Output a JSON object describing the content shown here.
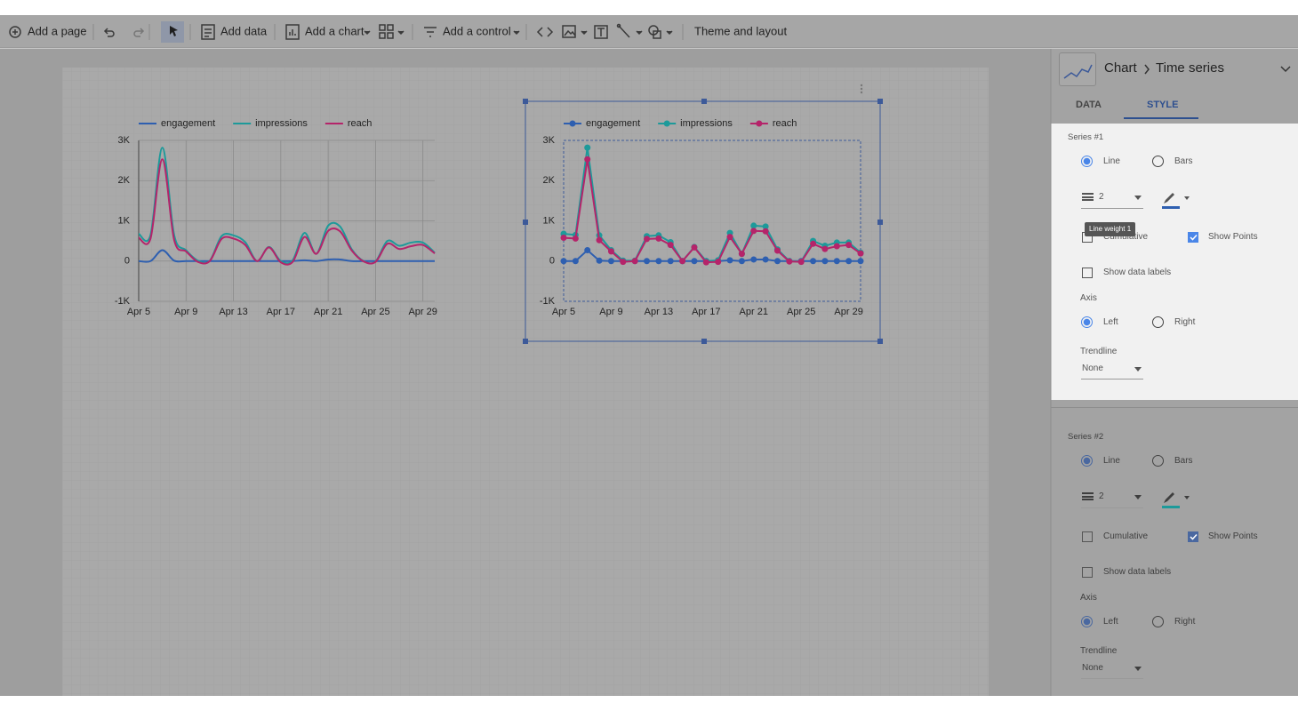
{
  "toolbar": {
    "items": [
      "Add a page",
      "Add data",
      "Add a chart",
      "Add a control",
      "Theme and layout"
    ]
  },
  "chart_data": [
    {
      "type": "line",
      "smooth": true,
      "show_points": false,
      "grid": true,
      "legend": "top",
      "categories": [
        "Apr 5",
        null,
        null,
        null,
        "Apr 9",
        null,
        null,
        null,
        "Apr 13",
        null,
        null,
        null,
        "Apr 17",
        null,
        null,
        null,
        "Apr 21",
        null,
        null,
        null,
        "Apr 25",
        null,
        null,
        null,
        "Apr 29",
        null
      ],
      "series": [
        {
          "name": "engagement",
          "color": "#2e5fb0",
          "values": [
            0,
            0,
            270,
            10,
            0,
            0,
            0,
            0,
            0,
            0,
            0,
            0,
            0,
            0,
            20,
            0,
            40,
            40,
            0,
            0,
            0,
            0,
            0,
            0,
            0,
            0
          ]
        },
        {
          "name": "impressions",
          "color": "#1d9a9a",
          "values": [
            680,
            650,
            2820,
            640,
            270,
            10,
            10,
            620,
            640,
            470,
            0,
            350,
            0,
            20,
            700,
            180,
            880,
            860,
            290,
            0,
            -10,
            500,
            380,
            460,
            460,
            210
          ]
        },
        {
          "name": "reach",
          "color": "#b5246a",
          "values": [
            580,
            560,
            2530,
            520,
            240,
            -20,
            0,
            550,
            560,
            400,
            0,
            340,
            -30,
            -20,
            600,
            180,
            750,
            740,
            260,
            -10,
            -20,
            430,
            300,
            370,
            400,
            190
          ]
        }
      ],
      "ylim": [
        -1000,
        3000
      ],
      "yticks": [
        {
          "value": -1000,
          "label": "-1K"
        },
        0,
        {
          "value": 1000,
          "label": "1K"
        },
        {
          "value": 2000,
          "label": "2K"
        },
        {
          "value": 3000,
          "label": "3K"
        }
      ]
    },
    {
      "type": "line",
      "smooth": false,
      "show_points": true,
      "grid": false,
      "legend": "top",
      "categories": [
        "Apr 5",
        null,
        null,
        null,
        "Apr 9",
        null,
        null,
        null,
        "Apr 13",
        null,
        null,
        null,
        "Apr 17",
        null,
        null,
        null,
        "Apr 21",
        null,
        null,
        null,
        "Apr 25",
        null,
        null,
        null,
        "Apr 29",
        null
      ],
      "series": [
        {
          "name": "engagement",
          "color": "#2e5fb0",
          "values": [
            0,
            0,
            270,
            10,
            0,
            0,
            0,
            0,
            0,
            0,
            0,
            0,
            0,
            0,
            20,
            0,
            40,
            40,
            0,
            0,
            0,
            0,
            0,
            0,
            0,
            0
          ]
        },
        {
          "name": "impressions",
          "color": "#1d9a9a",
          "values": [
            680,
            650,
            2820,
            640,
            270,
            10,
            10,
            620,
            640,
            470,
            0,
            350,
            0,
            20,
            700,
            180,
            880,
            860,
            290,
            0,
            -10,
            500,
            380,
            460,
            460,
            210
          ]
        },
        {
          "name": "reach",
          "color": "#b5246a",
          "values": [
            580,
            560,
            2530,
            520,
            240,
            -20,
            0,
            550,
            560,
            400,
            0,
            340,
            -30,
            -20,
            600,
            180,
            750,
            740,
            260,
            -10,
            -20,
            430,
            300,
            370,
            400,
            190
          ]
        }
      ],
      "ylim": [
        -1000,
        3000
      ],
      "yticks": [
        {
          "value": -1000,
          "label": "-1K"
        },
        0,
        {
          "value": 1000,
          "label": "1K"
        },
        {
          "value": 2000,
          "label": "2K"
        },
        {
          "value": 3000,
          "label": "3K"
        }
      ]
    }
  ],
  "panel": {
    "chart": "Chart",
    "chart_type": "Time series",
    "tabs": [
      "DATA",
      "STYLE"
    ],
    "tooltip": "Line weight 1",
    "series": [
      {
        "label": "Series #1",
        "type_options": [
          "Line",
          "Bars"
        ],
        "line_weight": 2,
        "cumulative": "Cumulative",
        "show_points": "Show Points",
        "show_data_labels": "Show data labels",
        "axis": "Axis",
        "axis_options": [
          "Left",
          "Right"
        ],
        "trendline": "Trendline",
        "trendline_value": "None"
      },
      {
        "label": "Series #2",
        "type_options": [
          "Line",
          "Bars"
        ],
        "line_weight": 2,
        "cumulative": "Cumulative",
        "show_points": "Show Points",
        "show_data_labels": "Show data labels",
        "axis": "Axis",
        "axis_options": [
          "Left",
          "Right"
        ],
        "trendline": "Trendline",
        "trendline_value": "None"
      }
    ]
  }
}
